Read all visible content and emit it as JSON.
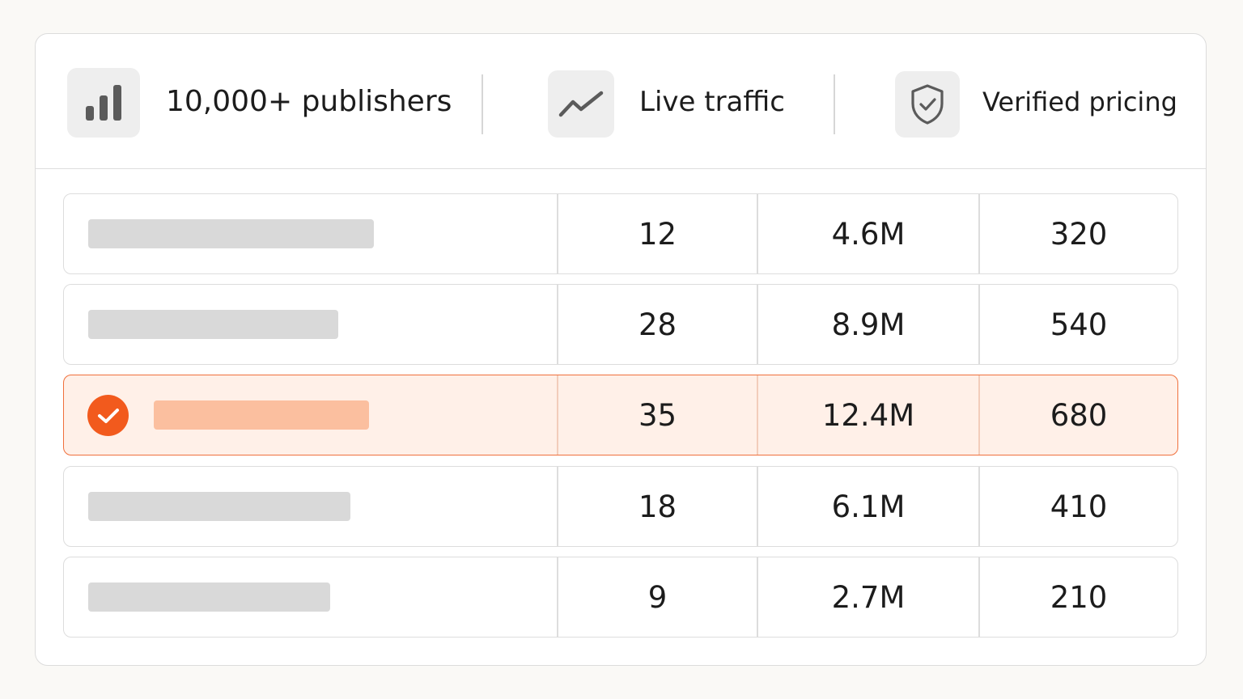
{
  "features": [
    {
      "icon": "bar-chart-icon",
      "label": "10,000+ publishers"
    },
    {
      "icon": "trend-line-icon",
      "label": "Live traffic"
    },
    {
      "icon": "shield-check-icon",
      "label": "Verified pricing"
    }
  ],
  "colors": {
    "accent": "#f25a1d",
    "selected_row_bg": "#fff0e8",
    "placeholder": "#d9d9d9",
    "placeholder_selected": "#fbbf9f"
  },
  "rows": [
    {
      "col1": "12",
      "col2": "4.6M",
      "col3": "320",
      "selected": false
    },
    {
      "col1": "28",
      "col2": "8.9M",
      "col3": "540",
      "selected": false
    },
    {
      "col1": "35",
      "col2": "12.4M",
      "col3": "680",
      "selected": true
    },
    {
      "col1": "18",
      "col2": "6.1M",
      "col3": "410",
      "selected": false
    },
    {
      "col1": "9",
      "col2": "2.7M",
      "col3": "210",
      "selected": false
    }
  ]
}
